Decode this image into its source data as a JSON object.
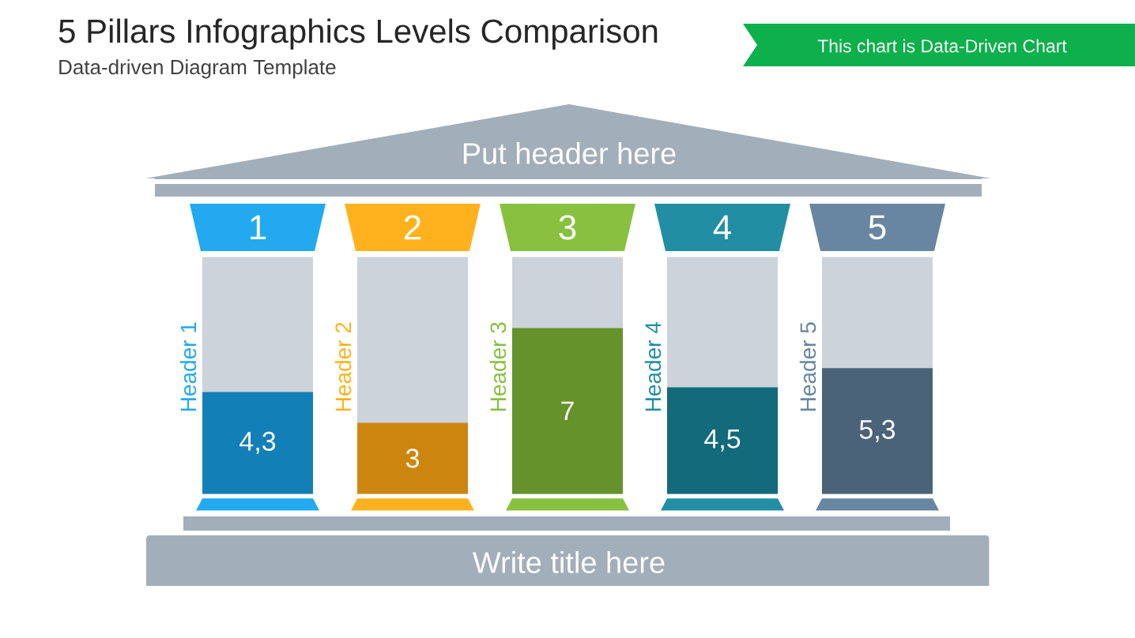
{
  "chart_data": {
    "type": "bar",
    "title": "5 Pillars Infographics Levels Comparison",
    "subtitle": "Data-driven Diagram Template",
    "categories": [
      "Header 1",
      "Header 2",
      "Header 3",
      "Header 4",
      "Header 5"
    ],
    "values": [
      4.3,
      3,
      7,
      4.5,
      5.3
    ],
    "colors": [
      "#137fb7",
      "#cc860f",
      "#65922b",
      "#136a7b",
      "#4b6379"
    ],
    "value_labels": [
      "4,3",
      "3",
      "7",
      "4,5",
      "5,3"
    ],
    "ylim": [
      0,
      10
    ],
    "tick_labels": false,
    "annotations": [
      "This chart is Data-Driven Chart",
      "Put header here",
      "1",
      "2",
      "3",
      "4",
      "5",
      "Write title here"
    ]
  }
}
